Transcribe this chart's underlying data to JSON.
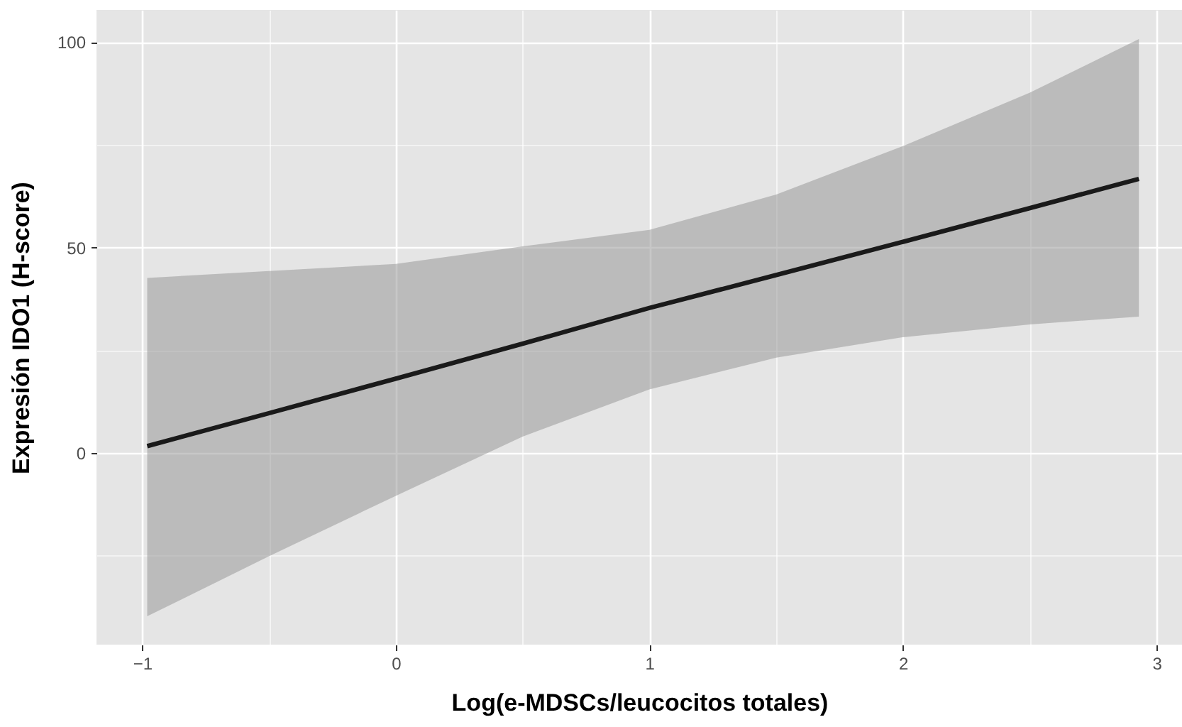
{
  "chart_data": {
    "type": "line",
    "xlabel": "Log(e-MDSCs/leucocitos totales)",
    "ylabel": "Expresión IDO1 (H-score)",
    "x": [
      -0.98,
      -0.5,
      0,
      0.5,
      1,
      1.5,
      2,
      2.5,
      2.93
    ],
    "series": [
      {
        "color": "#1a1a1a",
        "values": [
          1.7,
          9.7,
          18.1,
          26.6,
          35.3,
          43.3,
          51.4,
          59.6,
          66.7
        ],
        "lower": [
          -39.7,
          -25.1,
          -10.4,
          4.0,
          15.5,
          23.2,
          28.2,
          31.3,
          33.2
        ],
        "upper": [
          42.6,
          44.3,
          46.0,
          50.3,
          54.3,
          62.9,
          74.7,
          87.7,
          100.7
        ]
      }
    ],
    "xlim": [
      -1.18,
      3.1
    ],
    "ylim": [
      -46.6,
      107.8
    ],
    "xticks": [
      -1,
      {
        "value": -0.5,
        "label": null
      },
      0,
      {
        "value": 0.5,
        "label": null
      },
      1,
      {
        "value": 1.5,
        "label": null
      },
      2,
      {
        "value": 2.5,
        "label": null
      },
      3
    ],
    "yticks": [
      {
        "value": -25,
        "label": null
      },
      0,
      {
        "value": 25,
        "label": null
      },
      50,
      {
        "value": 75,
        "label": null
      },
      100
    ],
    "grid": true
  }
}
